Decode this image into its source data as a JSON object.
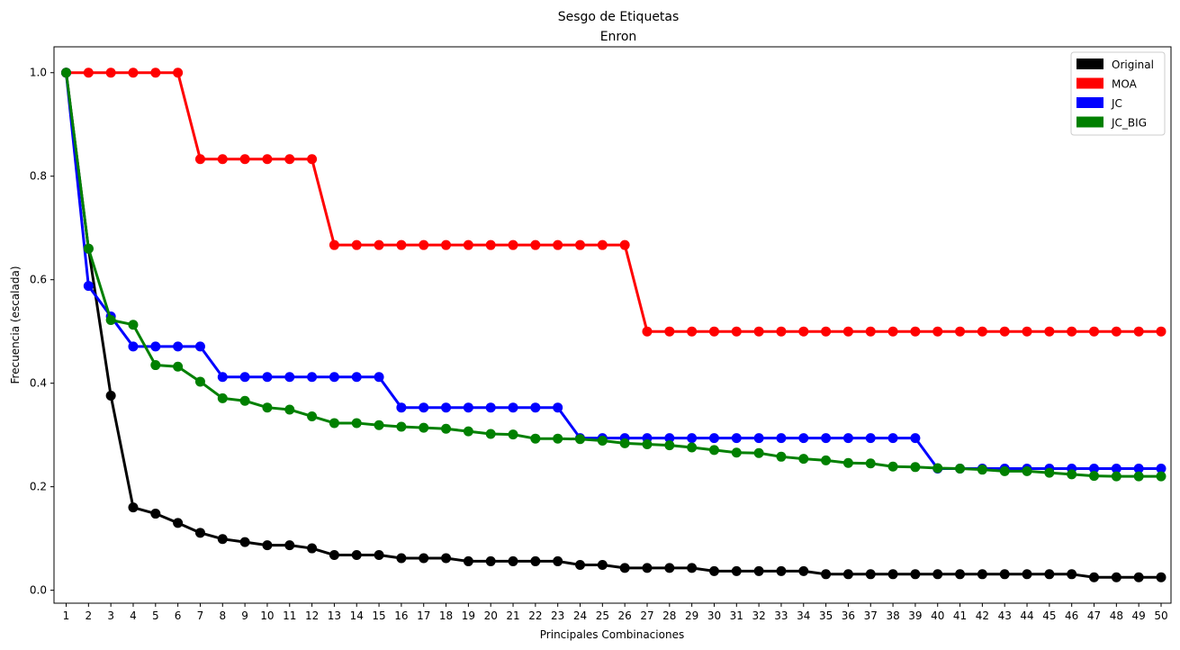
{
  "chart_data": {
    "type": "line",
    "title": "Sesgo de Etiquetas",
    "subtitle": "Enron",
    "xlabel": "Principales Combinaciones",
    "ylabel": "Frecuencia (escalada)",
    "ylim": [
      -0.025,
      1.05
    ],
    "yticks": [
      0.0,
      0.2,
      0.4,
      0.6,
      0.8,
      1.0
    ],
    "ytick_labels": [
      "0.0",
      "0.2",
      "0.4",
      "0.6",
      "0.8",
      "1.0"
    ],
    "x": [
      "1",
      "2",
      "3",
      "4",
      "5",
      "6",
      "7",
      "8",
      "9",
      "10",
      "11",
      "12",
      "13",
      "14",
      "15",
      "16",
      "17",
      "18",
      "19",
      "20",
      "21",
      "22",
      "23",
      "24",
      "25",
      "26",
      "27",
      "28",
      "29",
      "30",
      "31",
      "32",
      "33",
      "34",
      "35",
      "36",
      "37",
      "38",
      "39",
      "40",
      "41",
      "42",
      "43",
      "44",
      "45",
      "46",
      "47",
      "48",
      "49",
      "50"
    ],
    "grid": false,
    "legend_position": "top-right",
    "series": [
      {
        "name": "Original",
        "color": "#000000",
        "values": [
          1.0,
          0.66,
          0.376,
          0.16,
          0.148,
          0.13,
          0.111,
          0.099,
          0.093,
          0.087,
          0.087,
          0.081,
          0.068,
          0.068,
          0.068,
          0.062,
          0.062,
          0.062,
          0.056,
          0.056,
          0.056,
          0.056,
          0.056,
          0.049,
          0.049,
          0.043,
          0.043,
          0.043,
          0.043,
          0.037,
          0.037,
          0.037,
          0.037,
          0.037,
          0.031,
          0.031,
          0.031,
          0.031,
          0.031,
          0.031,
          0.031,
          0.031,
          0.031,
          0.031,
          0.031,
          0.031,
          0.025,
          0.025,
          0.025,
          0.025
        ]
      },
      {
        "name": "MOA",
        "color": "#ff0000",
        "values": [
          1.0,
          1.0,
          1.0,
          1.0,
          1.0,
          1.0,
          0.833,
          0.833,
          0.833,
          0.833,
          0.833,
          0.833,
          0.667,
          0.667,
          0.667,
          0.667,
          0.667,
          0.667,
          0.667,
          0.667,
          0.667,
          0.667,
          0.667,
          0.667,
          0.667,
          0.667,
          0.5,
          0.5,
          0.5,
          0.5,
          0.5,
          0.5,
          0.5,
          0.5,
          0.5,
          0.5,
          0.5,
          0.5,
          0.5,
          0.5,
          0.5,
          0.5,
          0.5,
          0.5,
          0.5,
          0.5,
          0.5,
          0.5,
          0.5,
          0.5
        ]
      },
      {
        "name": "JC",
        "color": "#0000ff",
        "values": [
          1.0,
          0.588,
          0.529,
          0.471,
          0.471,
          0.471,
          0.471,
          0.412,
          0.412,
          0.412,
          0.412,
          0.412,
          0.412,
          0.412,
          0.412,
          0.353,
          0.353,
          0.353,
          0.353,
          0.353,
          0.353,
          0.353,
          0.353,
          0.294,
          0.294,
          0.294,
          0.294,
          0.294,
          0.294,
          0.294,
          0.294,
          0.294,
          0.294,
          0.294,
          0.294,
          0.294,
          0.294,
          0.294,
          0.294,
          0.235,
          0.235,
          0.235,
          0.235,
          0.235,
          0.235,
          0.235,
          0.235,
          0.235,
          0.235,
          0.235
        ]
      },
      {
        "name": "JC_BIG",
        "color": "#008000",
        "values": [
          1.0,
          0.66,
          0.522,
          0.513,
          0.435,
          0.432,
          0.403,
          0.371,
          0.366,
          0.353,
          0.349,
          0.336,
          0.323,
          0.323,
          0.319,
          0.316,
          0.314,
          0.312,
          0.307,
          0.302,
          0.301,
          0.293,
          0.293,
          0.292,
          0.289,
          0.284,
          0.282,
          0.28,
          0.276,
          0.271,
          0.266,
          0.265,
          0.258,
          0.254,
          0.251,
          0.246,
          0.245,
          0.239,
          0.238,
          0.236,
          0.235,
          0.233,
          0.23,
          0.23,
          0.227,
          0.224,
          0.221,
          0.22,
          0.22,
          0.22
        ]
      }
    ]
  }
}
